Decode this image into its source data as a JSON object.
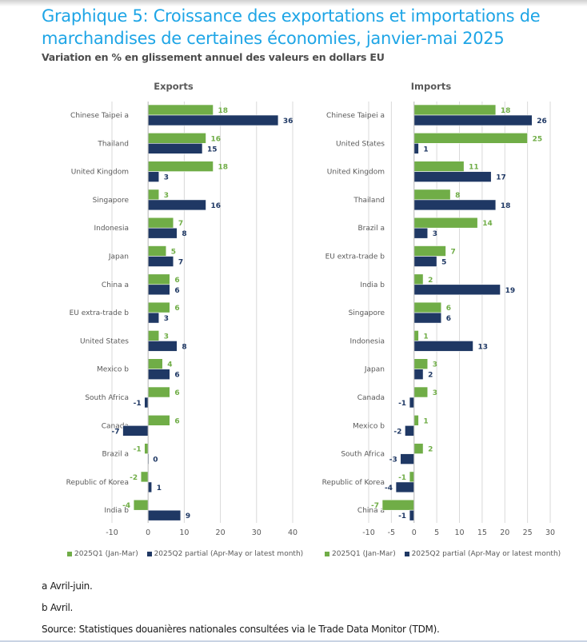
{
  "header": {
    "title": "Graphique 5: Croissance des exportations et importations de marchandises de certaines économies, janvier-mai 2025",
    "subtitle": "Variation en % en glissement annuel des valeurs en dollars EU"
  },
  "colors": {
    "q1": "#70ad47",
    "q2": "#1f3864",
    "title": "#1ea5e6",
    "grid": "#d9d9d9"
  },
  "legend": {
    "q1_label": "2025Q1 (Jan-Mar)",
    "q2_label": "2025Q2 partial (Apr-May or latest month)"
  },
  "footnotes": {
    "a": "a  Avril-juin.",
    "b": "b  Avril.",
    "source": "Source: Statistiques douanières nationales consultées via le Trade Data Monitor (TDM)."
  },
  "chart_data": [
    {
      "type": "bar",
      "orientation": "horizontal",
      "title": "Exports",
      "xlabel": "",
      "ylabel": "",
      "xlim": [
        -10,
        40
      ],
      "xticks": [
        -10,
        0,
        10,
        20,
        30,
        40
      ],
      "grid": true,
      "legend": "bottom",
      "categories": [
        "Chinese Taipei  a",
        "Thailand",
        "United Kingdom",
        "Singapore",
        "Indonesia",
        "Japan",
        "China  a",
        "EU extra-trade  b",
        "United States",
        "Mexico  b",
        "South Africa",
        "Canada",
        "Brazil  a",
        "Republic of Korea",
        "India  b"
      ],
      "series": [
        {
          "name": "2025Q1 (Jan-Mar)",
          "values": [
            18,
            16,
            18,
            3,
            7,
            5,
            6,
            6,
            3,
            4,
            6,
            6,
            -1,
            -2,
            -4
          ]
        },
        {
          "name": "2025Q2 partial (Apr-May or latest month)",
          "values": [
            36,
            15,
            3,
            16,
            8,
            7,
            6,
            3,
            8,
            6,
            -1,
            -7,
            0,
            1,
            9
          ]
        }
      ]
    },
    {
      "type": "bar",
      "orientation": "horizontal",
      "title": "Imports",
      "xlabel": "",
      "ylabel": "",
      "xlim": [
        -10,
        30
      ],
      "xticks": [
        -10,
        -5,
        0,
        5,
        10,
        15,
        20,
        25,
        30
      ],
      "grid": true,
      "legend": "bottom",
      "categories": [
        "Chinese Taipei  a",
        "United States",
        "United Kingdom",
        "Thailand",
        "Brazil  a",
        "EU extra-trade  b",
        "India  b",
        "Singapore",
        "Indonesia",
        "Japan",
        "Canada",
        "Mexico  b",
        "South Africa",
        "Republic of Korea",
        "China  a"
      ],
      "series": [
        {
          "name": "2025Q1 (Jan-Mar)",
          "values": [
            18,
            25,
            11,
            8,
            14,
            7,
            2,
            6,
            1,
            3,
            3,
            1,
            2,
            -1,
            -7
          ]
        },
        {
          "name": "2025Q2 partial (Apr-May or latest month)",
          "values": [
            26,
            1,
            17,
            18,
            3,
            5,
            19,
            6,
            13,
            2,
            -1,
            -2,
            -3,
            -4,
            -1
          ]
        }
      ]
    }
  ]
}
